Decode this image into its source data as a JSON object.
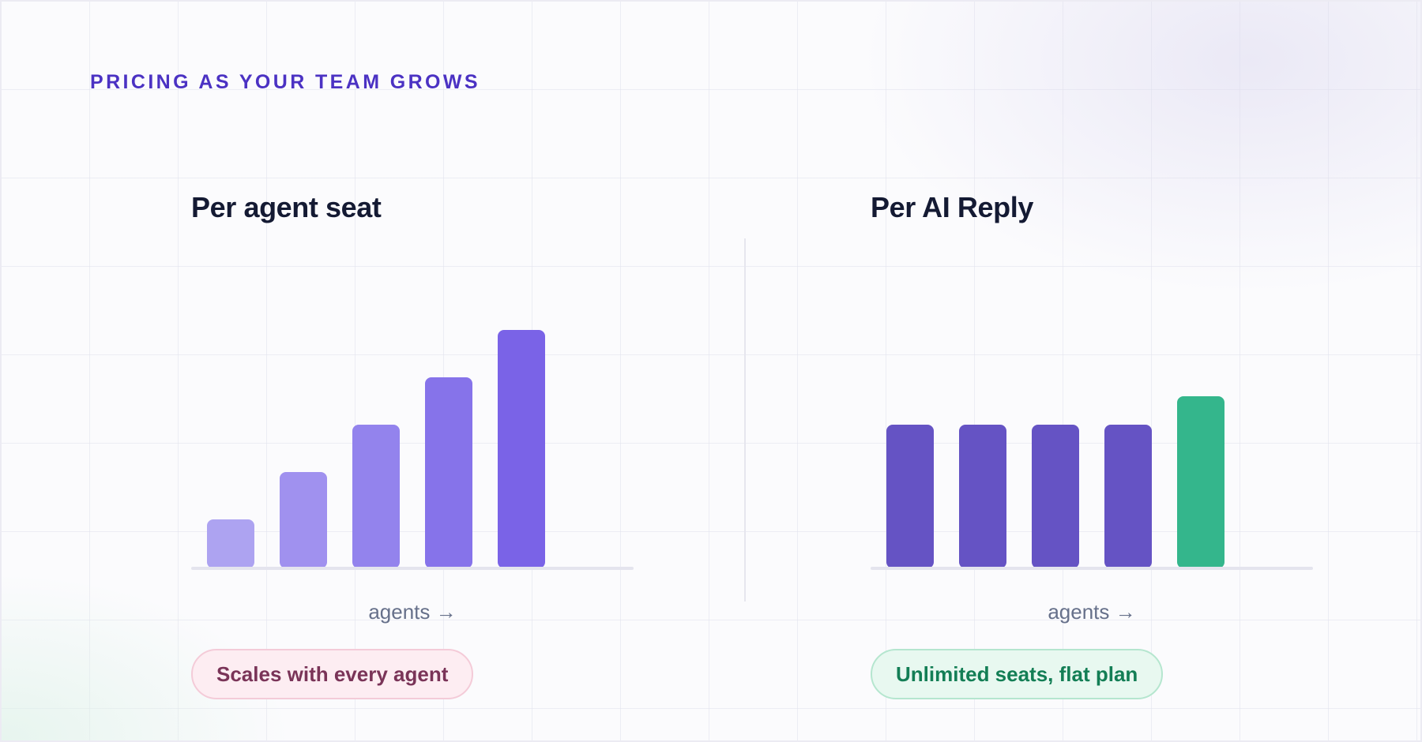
{
  "eyebrow": "PRICING AS YOUR TEAM GROWS",
  "chart_data": [
    {
      "type": "bar",
      "title": "Per agent seat",
      "xlabel": "agents →",
      "ylabel": "",
      "categories": [
        "",
        "",
        "",
        "",
        ""
      ],
      "values": [
        1,
        2,
        3,
        4,
        5
      ],
      "ylim": [
        0,
        7
      ],
      "grid": false,
      "colors": [
        "#ada3f1",
        "#a091ef",
        "#9383ed",
        "#8673ea",
        "#7a63e7"
      ],
      "badge": "Scales with every agent"
    },
    {
      "type": "bar",
      "title": "Per AI Reply",
      "xlabel": "agents →",
      "ylabel": "",
      "categories": [
        "",
        "",
        "",
        "",
        ""
      ],
      "values": [
        3,
        3,
        3,
        3,
        3.6
      ],
      "ylim": [
        0,
        7
      ],
      "grid": false,
      "colors": [
        "#6553c4",
        "#6553c4",
        "#6553c4",
        "#6553c4",
        "#34b68c"
      ],
      "badge": "Unlimited seats, flat plan"
    }
  ],
  "theme": {
    "accent": "#4b32c3",
    "baseline": "#e4e4ee"
  }
}
